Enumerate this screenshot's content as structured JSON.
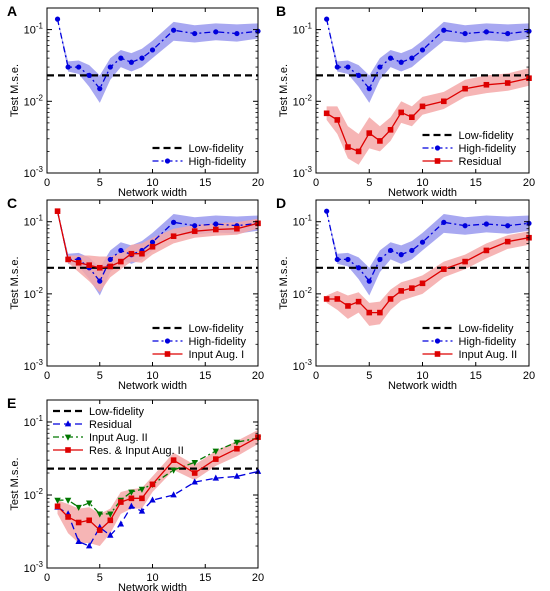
{
  "chart_data": [
    {
      "panel": "A",
      "type": "line",
      "xlabel": "Network width",
      "ylabel": "Test M.s.e.",
      "xlim": [
        0,
        20
      ],
      "ylim": [
        0.001,
        0.2
      ],
      "yscale": "log",
      "xticks": [
        "0",
        "5",
        "10",
        "15",
        "20"
      ],
      "yticks": [
        "10-3",
        "10-2",
        "10-1"
      ],
      "legend_position": "bottom-right",
      "series": [
        {
          "name": "Low-fidelity",
          "style": "dashed",
          "color": "#000000",
          "marker": "none",
          "x": [
            0,
            20
          ],
          "y": [
            0.023,
            0.023
          ]
        },
        {
          "name": "High-fidelity",
          "style": "dash-dot",
          "color": "#0000dd",
          "band_color": "#9999ee",
          "marker": "circle",
          "x": [
            1,
            2,
            3,
            4,
            5,
            6,
            7,
            8,
            9,
            10,
            12,
            14,
            16,
            18,
            20
          ],
          "y": [
            0.14,
            0.03,
            0.03,
            0.023,
            0.015,
            0.03,
            0.04,
            0.035,
            0.04,
            0.052,
            0.098,
            0.088,
            0.093,
            0.088,
            0.095
          ],
          "band_lo": [
            0.14,
            0.026,
            0.024,
            0.016,
            0.0095,
            0.02,
            0.03,
            0.026,
            0.03,
            0.04,
            0.07,
            0.066,
            0.071,
            0.068,
            0.075
          ],
          "band_hi": [
            0.14,
            0.036,
            0.037,
            0.032,
            0.023,
            0.04,
            0.052,
            0.047,
            0.054,
            0.07,
            0.128,
            0.115,
            0.122,
            0.118,
            0.122
          ]
        }
      ]
    },
    {
      "panel": "B",
      "type": "line",
      "xlabel": "Network width",
      "ylabel": "Test M.s.e.",
      "xlim": [
        0,
        20
      ],
      "ylim": [
        0.001,
        0.2
      ],
      "yscale": "log",
      "xticks": [
        "0",
        "5",
        "10",
        "15",
        "20"
      ],
      "yticks": [
        "10-3",
        "10-2",
        "10-1"
      ],
      "legend_position": "bottom-right",
      "series": [
        {
          "name": "Low-fidelity",
          "style": "dashed",
          "color": "#000000",
          "marker": "none",
          "x": [
            0,
            20
          ],
          "y": [
            0.023,
            0.023
          ]
        },
        {
          "name": "High-fidelity",
          "style": "dash-dot",
          "color": "#0000dd",
          "band_color": "#9999ee",
          "marker": "circle",
          "x": [
            1,
            2,
            3,
            4,
            5,
            6,
            7,
            8,
            9,
            10,
            12,
            14,
            16,
            18,
            20
          ],
          "y": [
            0.14,
            0.03,
            0.03,
            0.023,
            0.015,
            0.03,
            0.04,
            0.035,
            0.04,
            0.052,
            0.098,
            0.088,
            0.093,
            0.088,
            0.095
          ],
          "band_lo": [
            0.14,
            0.026,
            0.024,
            0.016,
            0.0095,
            0.02,
            0.03,
            0.026,
            0.03,
            0.04,
            0.07,
            0.066,
            0.071,
            0.068,
            0.075
          ],
          "band_hi": [
            0.14,
            0.036,
            0.037,
            0.032,
            0.023,
            0.04,
            0.052,
            0.047,
            0.054,
            0.07,
            0.128,
            0.115,
            0.122,
            0.118,
            0.122
          ]
        },
        {
          "name": "Residual",
          "style": "solid",
          "color": "#dd0000",
          "band_color": "#f5a8a8",
          "marker": "square",
          "x": [
            1,
            2,
            3,
            4,
            5,
            6,
            7,
            8,
            9,
            10,
            12,
            14,
            16,
            18,
            20
          ],
          "y": [
            0.0068,
            0.0055,
            0.0023,
            0.002,
            0.0036,
            0.0028,
            0.004,
            0.007,
            0.006,
            0.0085,
            0.01,
            0.015,
            0.017,
            0.018,
            0.021
          ],
          "band_lo": [
            0.0055,
            0.0035,
            0.0016,
            0.0013,
            0.0022,
            0.002,
            0.0028,
            0.005,
            0.0045,
            0.0065,
            0.0078,
            0.0115,
            0.013,
            0.014,
            0.0165
          ],
          "band_hi": [
            0.0085,
            0.0085,
            0.0045,
            0.0035,
            0.006,
            0.0045,
            0.006,
            0.01,
            0.0085,
            0.0115,
            0.0135,
            0.02,
            0.023,
            0.0245,
            0.029
          ]
        }
      ]
    },
    {
      "panel": "C",
      "type": "line",
      "xlabel": "Network width",
      "ylabel": "Test M.s.e.",
      "xlim": [
        0,
        20
      ],
      "ylim": [
        0.001,
        0.2
      ],
      "yscale": "log",
      "xticks": [
        "0",
        "5",
        "10",
        "15",
        "20"
      ],
      "yticks": [
        "10-3",
        "10-2",
        "10-1"
      ],
      "legend_position": "bottom-right",
      "series": [
        {
          "name": "Low-fidelity",
          "style": "dashed",
          "color": "#000000",
          "marker": "none",
          "x": [
            0,
            20
          ],
          "y": [
            0.023,
            0.023
          ]
        },
        {
          "name": "High-fidelity",
          "style": "dash-dot",
          "color": "#0000dd",
          "band_color": "#9999ee",
          "marker": "circle",
          "x": [
            1,
            2,
            3,
            4,
            5,
            6,
            7,
            8,
            9,
            10,
            12,
            14,
            16,
            18,
            20
          ],
          "y": [
            0.14,
            0.03,
            0.03,
            0.023,
            0.015,
            0.03,
            0.04,
            0.035,
            0.04,
            0.052,
            0.098,
            0.088,
            0.093,
            0.088,
            0.095
          ],
          "band_lo": [
            0.14,
            0.026,
            0.024,
            0.016,
            0.0095,
            0.02,
            0.03,
            0.026,
            0.03,
            0.04,
            0.07,
            0.066,
            0.071,
            0.068,
            0.075
          ],
          "band_hi": [
            0.14,
            0.036,
            0.037,
            0.032,
            0.023,
            0.04,
            0.052,
            0.047,
            0.054,
            0.07,
            0.128,
            0.115,
            0.122,
            0.118,
            0.122
          ]
        },
        {
          "name": "Input Aug. I",
          "style": "solid",
          "color": "#dd0000",
          "band_color": "#f5a8a8",
          "marker": "square",
          "x": [
            1,
            2,
            3,
            4,
            5,
            6,
            7,
            8,
            9,
            10,
            12,
            14,
            16,
            18,
            20
          ],
          "y": [
            0.14,
            0.03,
            0.027,
            0.025,
            0.023,
            0.024,
            0.028,
            0.036,
            0.036,
            0.045,
            0.063,
            0.074,
            0.078,
            0.08,
            0.095
          ],
          "band_lo": [
            0.13,
            0.027,
            0.02,
            0.015,
            0.0105,
            0.017,
            0.022,
            0.028,
            0.027,
            0.035,
            0.05,
            0.06,
            0.064,
            0.066,
            0.08
          ],
          "band_hi": [
            0.15,
            0.034,
            0.034,
            0.034,
            0.033,
            0.033,
            0.037,
            0.048,
            0.05,
            0.06,
            0.08,
            0.09,
            0.095,
            0.098,
            0.11
          ]
        }
      ]
    },
    {
      "panel": "D",
      "type": "line",
      "xlabel": "Network width",
      "ylabel": "Test M.s.e.",
      "xlim": [
        0,
        20
      ],
      "ylim": [
        0.001,
        0.2
      ],
      "yscale": "log",
      "xticks": [
        "0",
        "5",
        "10",
        "15",
        "20"
      ],
      "yticks": [
        "10-3",
        "10-2",
        "10-1"
      ],
      "legend_position": "bottom-right",
      "series": [
        {
          "name": "Low-fidelity",
          "style": "dashed",
          "color": "#000000",
          "marker": "none",
          "x": [
            0,
            20
          ],
          "y": [
            0.023,
            0.023
          ]
        },
        {
          "name": "High-fidelity",
          "style": "dash-dot",
          "color": "#0000dd",
          "band_color": "#9999ee",
          "marker": "circle",
          "x": [
            1,
            2,
            3,
            4,
            5,
            6,
            7,
            8,
            9,
            10,
            12,
            14,
            16,
            18,
            20
          ],
          "y": [
            0.14,
            0.03,
            0.03,
            0.023,
            0.015,
            0.03,
            0.04,
            0.035,
            0.04,
            0.052,
            0.098,
            0.088,
            0.093,
            0.088,
            0.095
          ],
          "band_lo": [
            0.14,
            0.026,
            0.024,
            0.016,
            0.0095,
            0.02,
            0.03,
            0.026,
            0.03,
            0.04,
            0.07,
            0.066,
            0.071,
            0.068,
            0.075
          ],
          "band_hi": [
            0.14,
            0.036,
            0.037,
            0.032,
            0.023,
            0.04,
            0.052,
            0.047,
            0.054,
            0.07,
            0.128,
            0.115,
            0.122,
            0.118,
            0.122
          ]
        },
        {
          "name": "Input Aug. II",
          "style": "solid",
          "color": "#dd0000",
          "band_color": "#f5a8a8",
          "marker": "square",
          "x": [
            1,
            2,
            3,
            4,
            5,
            6,
            7,
            8,
            9,
            10,
            12,
            14,
            16,
            18,
            20
          ],
          "y": [
            0.0085,
            0.0085,
            0.0068,
            0.0078,
            0.0055,
            0.0055,
            0.0085,
            0.011,
            0.012,
            0.014,
            0.022,
            0.028,
            0.04,
            0.053,
            0.06
          ],
          "band_lo": [
            0.0075,
            0.006,
            0.0045,
            0.0055,
            0.0036,
            0.0038,
            0.006,
            0.008,
            0.009,
            0.01,
            0.017,
            0.022,
            0.031,
            0.042,
            0.048
          ],
          "band_hi": [
            0.0095,
            0.011,
            0.0095,
            0.0105,
            0.0075,
            0.0078,
            0.0115,
            0.0145,
            0.016,
            0.018,
            0.028,
            0.035,
            0.05,
            0.065,
            0.074
          ]
        }
      ]
    },
    {
      "panel": "E",
      "type": "line",
      "xlabel": "Network width",
      "ylabel": "Test M.s.e.",
      "xlim": [
        0,
        20
      ],
      "ylim": [
        0.001,
        0.2
      ],
      "yscale": "log",
      "xticks": [
        "0",
        "5",
        "10",
        "15",
        "20"
      ],
      "yticks": [
        "10-3",
        "10-2",
        "10-1"
      ],
      "legend_position": "top-left",
      "series": [
        {
          "name": "Low-fidelity",
          "style": "dashed",
          "color": "#000000",
          "marker": "none",
          "x": [
            0,
            20
          ],
          "y": [
            0.023,
            0.023
          ]
        },
        {
          "name": "Residual",
          "style": "dashed",
          "color": "#0000dd",
          "marker": "triangle-up",
          "x": [
            1,
            2,
            3,
            4,
            5,
            6,
            7,
            8,
            9,
            10,
            12,
            14,
            16,
            18,
            20
          ],
          "y": [
            0.0068,
            0.0055,
            0.0023,
            0.002,
            0.0036,
            0.0028,
            0.004,
            0.007,
            0.006,
            0.0085,
            0.01,
            0.015,
            0.017,
            0.018,
            0.021
          ]
        },
        {
          "name": "Input Aug. II",
          "style": "dash-dot",
          "color": "#007700",
          "marker": "triangle-down",
          "x": [
            1,
            2,
            3,
            4,
            5,
            6,
            7,
            8,
            9,
            10,
            12,
            14,
            16,
            18,
            20
          ],
          "y": [
            0.0085,
            0.0085,
            0.0068,
            0.0078,
            0.0055,
            0.0055,
            0.0085,
            0.011,
            0.012,
            0.014,
            0.022,
            0.028,
            0.04,
            0.053,
            0.06
          ]
        },
        {
          "name": "Res. & Input Aug. II",
          "style": "solid",
          "color": "#dd0000",
          "band_color": "#f5a8a8",
          "marker": "square",
          "x": [
            1,
            2,
            3,
            4,
            5,
            6,
            7,
            8,
            9,
            10,
            12,
            14,
            16,
            18,
            20
          ],
          "y": [
            0.007,
            0.005,
            0.0042,
            0.0045,
            0.0033,
            0.0045,
            0.008,
            0.009,
            0.009,
            0.014,
            0.03,
            0.02,
            0.031,
            0.043,
            0.062
          ],
          "band_lo": [
            0.0055,
            0.003,
            0.0022,
            0.0022,
            0.002,
            0.003,
            0.0055,
            0.0065,
            0.0065,
            0.011,
            0.022,
            0.016,
            0.025,
            0.034,
            0.05
          ],
          "band_hi": [
            0.0085,
            0.0075,
            0.0065,
            0.0068,
            0.0055,
            0.0065,
            0.011,
            0.012,
            0.0125,
            0.018,
            0.038,
            0.026,
            0.04,
            0.055,
            0.078
          ]
        }
      ]
    }
  ]
}
